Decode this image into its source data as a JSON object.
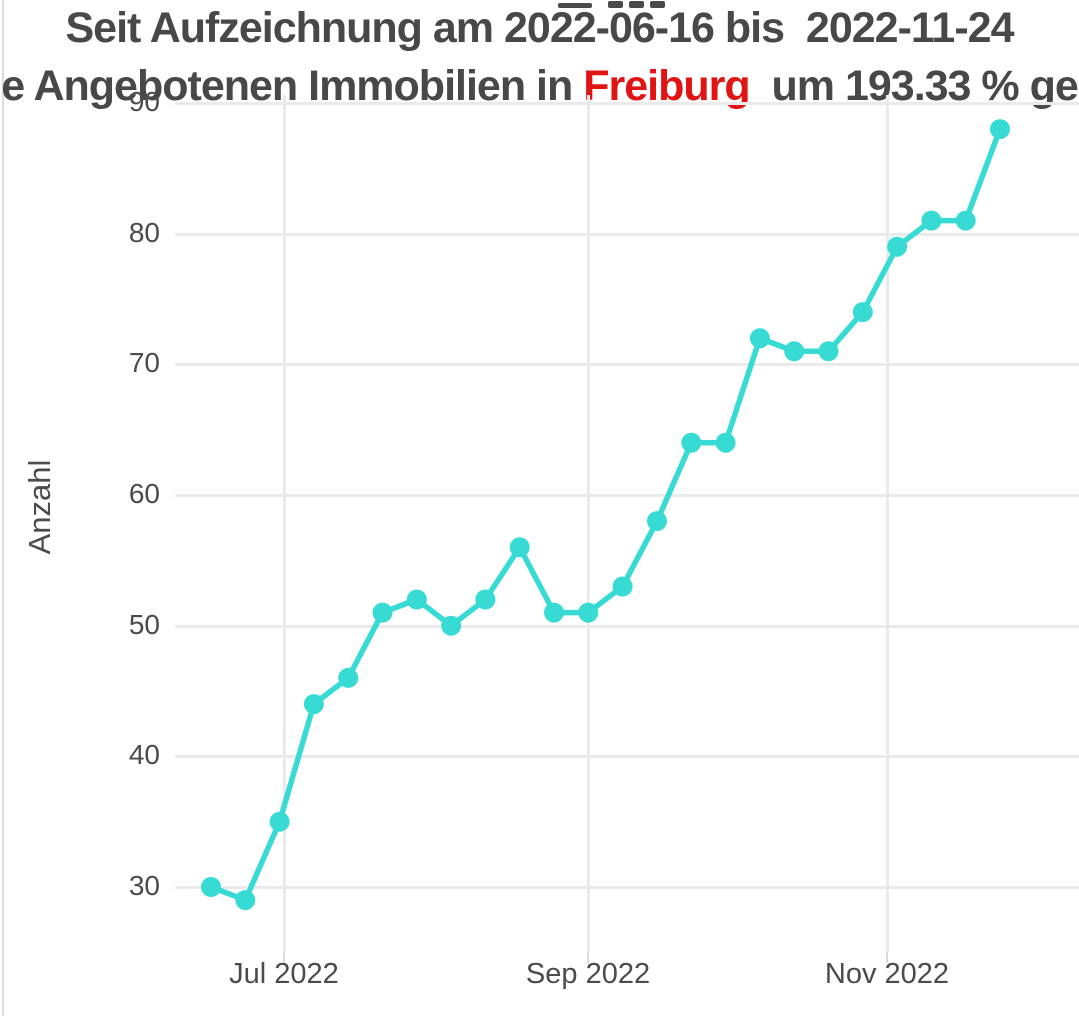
{
  "header": {
    "line1": "Seit Aufzeichnung am 2022-06-16 bis  2022-11-24",
    "line2_prefix": "e Angebotenen Immobilien in ",
    "line2_highlight": "Freiburg",
    "line2_suffix": "  um 193.33 % ge",
    "text_color": "#484848",
    "highlight_color": "#E11414"
  },
  "chart_data": {
    "type": "line",
    "title": "Seit Aufzeichnung am 2022-06-16 bis 2022-11-24 | e Angebotenen Immobilien in Freiburg um 193.33 % ge (title clipped at image edges)",
    "xlabel": "",
    "ylabel": "Anzahl",
    "x": [
      "2022-06-16",
      "2022-06-23",
      "2022-06-30",
      "2022-07-07",
      "2022-07-14",
      "2022-07-21",
      "2022-07-28",
      "2022-08-04",
      "2022-08-11",
      "2022-08-18",
      "2022-08-25",
      "2022-09-01",
      "2022-09-08",
      "2022-09-15",
      "2022-09-22",
      "2022-09-29",
      "2022-10-06",
      "2022-10-13",
      "2022-10-20",
      "2022-10-27",
      "2022-11-03",
      "2022-11-10",
      "2022-11-17",
      "2022-11-24"
    ],
    "values": [
      30,
      29,
      35,
      44,
      46,
      51,
      52,
      50,
      52,
      56,
      51,
      51,
      53,
      58,
      64,
      64,
      72,
      71,
      71,
      74,
      79,
      81,
      81,
      88
    ],
    "percent_change_label": "193.33 %",
    "xticks": [
      "Jul 2022",
      "Sep 2022",
      "Nov 2022"
    ],
    "yticks": [
      30,
      40,
      50,
      60,
      70,
      80,
      90
    ],
    "ylim": [
      24,
      95
    ],
    "grid": true,
    "legend": false,
    "marker": "circle",
    "colors": {
      "line": "#38DBD4",
      "grid": "#EAEAEA",
      "tick_text": "#4B4B4B"
    }
  }
}
